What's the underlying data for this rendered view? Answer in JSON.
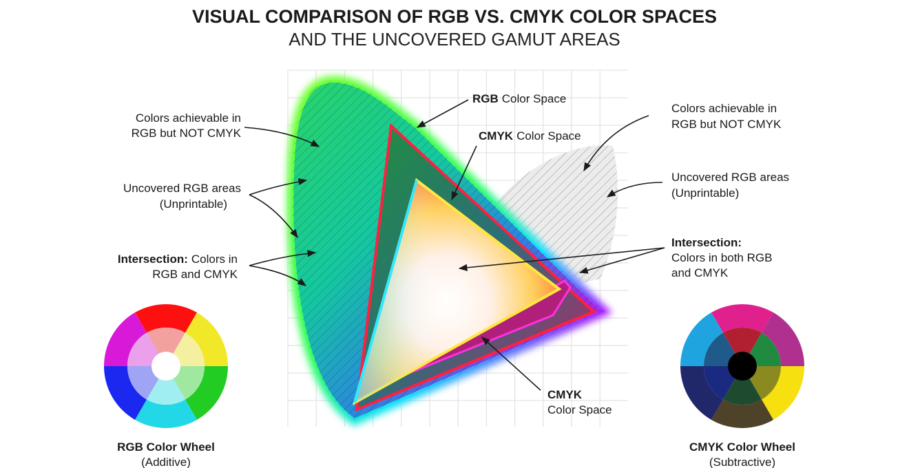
{
  "header": {
    "title": "VISUAL COMPARISON OF RGB VS. CMYK COLOR SPACES",
    "subtitle": "AND THE UNCOVERED GAMUT AREAS"
  },
  "left_labels": [
    {
      "lines": [
        "Colors achievable in",
        "RGB but NOT CMYK"
      ]
    },
    {
      "lines": [
        "Uncovered RGB areas",
        "(Unprintable)"
      ]
    },
    {
      "bold": "Intersection:",
      "lines": [
        "Colors in",
        "RGB and CMYK"
      ]
    }
  ],
  "diagram_labels": {
    "rgb": {
      "bold": "RGB",
      "text": "Color Space"
    },
    "cmyk_top": {
      "bold": "CMYK",
      "text": "Color Space"
    },
    "cmyk_bottom": {
      "bold": "CMYK",
      "text": "Color Space"
    }
  },
  "right_labels": [
    {
      "lines": [
        "Colors achievable in",
        "RGB but NOT CMYK"
      ]
    },
    {
      "lines": [
        "Uncovered RGB areas",
        "(Unprintable)"
      ]
    },
    {
      "bold": "Intersection:",
      "lines": [
        "Colors in both RGB",
        "and CMYK"
      ]
    }
  ],
  "wheels": {
    "rgb": {
      "title": "RGB Color Wheel",
      "note": "(Additive)"
    },
    "cmyk": {
      "title": "CMYK Color Wheel",
      "note": "(Subtractive)"
    }
  }
}
